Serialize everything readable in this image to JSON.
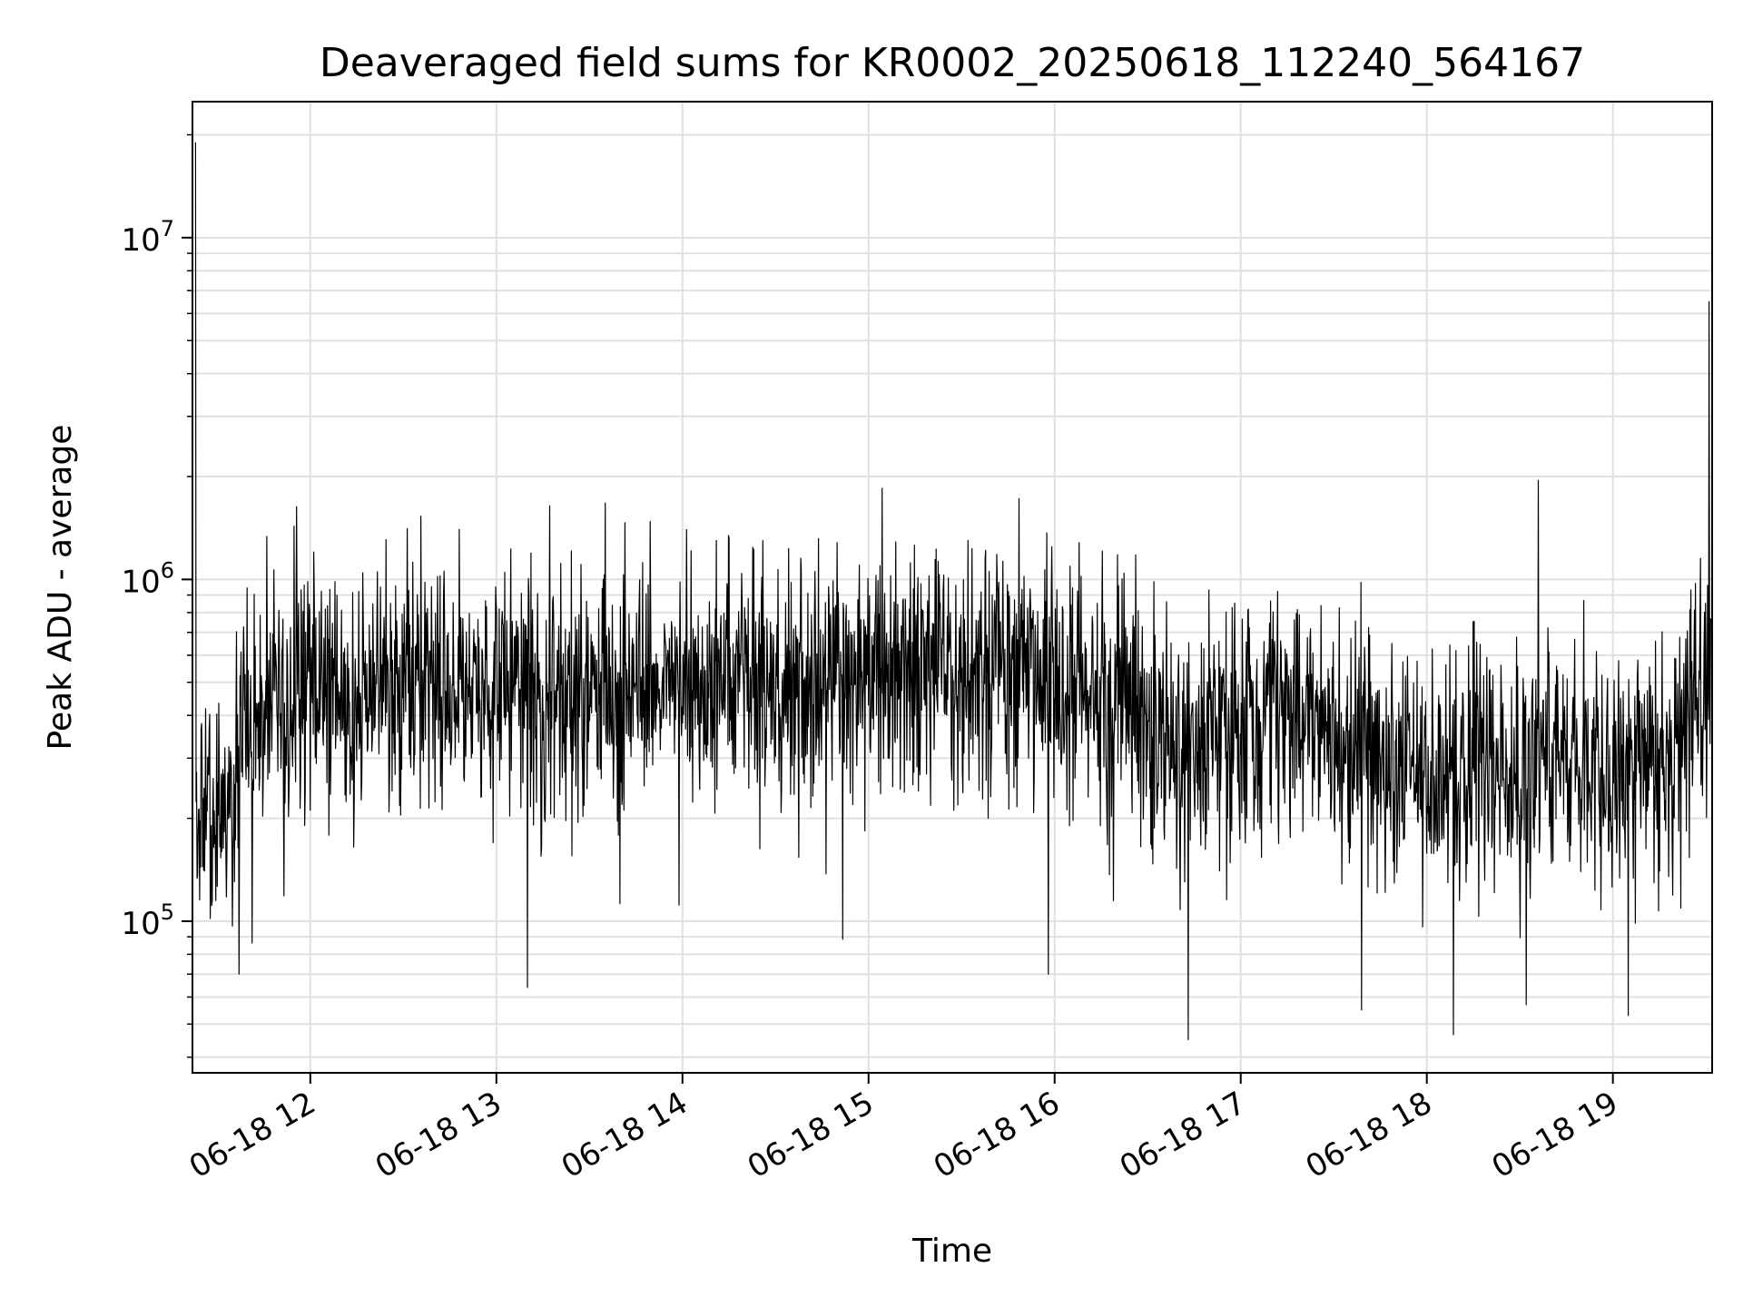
{
  "chart_data": {
    "type": "line",
    "title": "Deaveraged field sums for KR0002_20250618_112240_564167",
    "xlabel": "Time",
    "ylabel": "Peak ADU - average",
    "yscale": "log",
    "ylim": [
      36000,
      25000000
    ],
    "xlim": [
      "06-18 11:22",
      "06-18 19:32"
    ],
    "grid": true,
    "line_color": "#000000",
    "grid_color": "#e0e0e0",
    "x_ticks": [
      "06-18 12",
      "06-18 13",
      "06-18 14",
      "06-18 15",
      "06-18 16",
      "06-18 17",
      "06-18 18",
      "06-18 19"
    ],
    "y_ticks": [
      {
        "base": "10",
        "exp": "5",
        "value": 100000
      },
      {
        "base": "10",
        "exp": "6",
        "value": 1000000
      },
      {
        "base": "10",
        "exp": "7",
        "value": 10000000
      }
    ],
    "series": [
      {
        "x": [
          "06-18 11:22",
          "06-18 11:25",
          "06-18 11:30",
          "06-18 11:35",
          "06-18 11:40",
          "06-18 11:45",
          "06-18 11:50",
          "06-18 12:00",
          "06-18 12:10",
          "06-18 12:20",
          "06-18 12:30",
          "06-18 12:40",
          "06-18 12:50",
          "06-18 13:00",
          "06-18 13:15",
          "06-18 13:30",
          "06-18 13:45",
          "06-18 14:00",
          "06-18 14:15",
          "06-18 14:30",
          "06-18 14:45",
          "06-18 15:00",
          "06-18 15:15",
          "06-18 15:30",
          "06-18 15:45",
          "06-18 16:00",
          "06-18 16:15",
          "06-18 16:30",
          "06-18 16:45",
          "06-18 17:00",
          "06-18 17:15",
          "06-18 17:30",
          "06-18 17:45",
          "06-18 18:00",
          "06-18 18:15",
          "06-18 18:30",
          "06-18 18:45",
          "06-18 19:00",
          "06-18 19:15",
          "06-18 19:25",
          "06-18 19:32"
        ],
        "y": [
          200000,
          250000,
          200000,
          250000,
          400000,
          450000,
          450000,
          480000,
          450000,
          480000,
          500000,
          500000,
          450000,
          500000,
          480000,
          470000,
          500000,
          520000,
          520000,
          500000,
          470000,
          530000,
          550000,
          520000,
          550000,
          530000,
          450000,
          380000,
          330000,
          340000,
          430000,
          350000,
          280000,
          250000,
          300000,
          280000,
          300000,
          260000,
          300000,
          380000,
          450000
        ]
      }
    ],
    "spikes": [
      {
        "x": "06-18 11:23",
        "y": 19000000
      },
      {
        "x": "06-18 12:48",
        "y": 1400000
      },
      {
        "x": "06-18 14:26",
        "y": 1300000
      },
      {
        "x": "06-18 15:32",
        "y": 1300000
      },
      {
        "x": "06-18 18:36",
        "y": 1950000
      },
      {
        "x": "06-18 19:31",
        "y": 6500000
      },
      {
        "x": "06-18 16:43",
        "y": 45000
      },
      {
        "x": "06-18 11:37",
        "y": 70000
      },
      {
        "x": "06-18 13:10",
        "y": 64000
      },
      {
        "x": "06-18 17:39",
        "y": 55000
      },
      {
        "x": "06-18 19:05",
        "y": 53000
      },
      {
        "x": "06-18 18:32",
        "y": 57000
      },
      {
        "x": "06-18 15:58",
        "y": 70000
      }
    ]
  }
}
